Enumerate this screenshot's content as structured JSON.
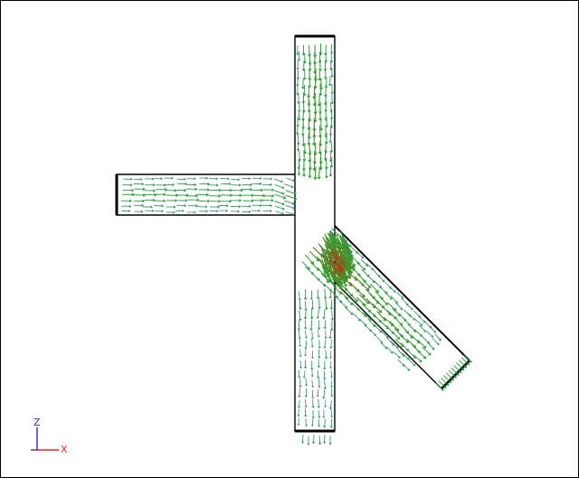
{
  "scene": {
    "axes": {
      "vertical_label": "Z",
      "horizontal_label": "X",
      "vertical_color": "#3333cc",
      "horizontal_color": "#ee2222"
    },
    "colors": {
      "pipe_outline": "#000000",
      "pipe_edge_tint": "#1a6e6e",
      "vector_low": "#3d7fbf",
      "vector_mid": "#2fa030",
      "vector_high": "#cc2a10"
    }
  }
}
